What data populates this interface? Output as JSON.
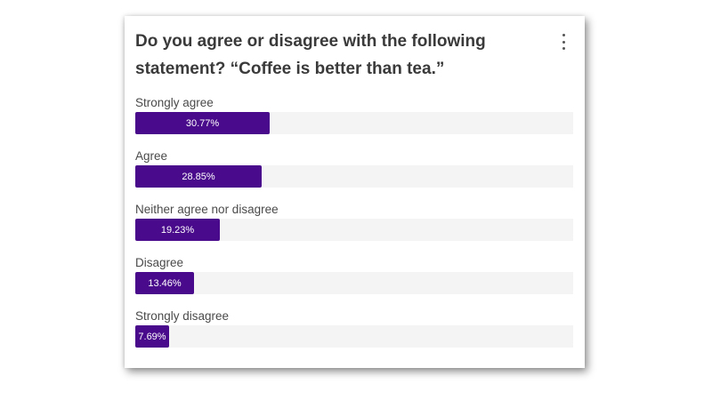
{
  "card": {
    "question": "Do you agree or disagree with the following statement? “Coffee is better than tea.”"
  },
  "chart_data": {
    "type": "bar",
    "orientation": "horizontal",
    "title": "Do you agree or disagree with the following statement? “Coffee is better than tea.”",
    "xlim": [
      0,
      100
    ],
    "bar_color": "#4a0a8c",
    "track_color": "#f4f4f4",
    "categories": [
      "Strongly agree",
      "Agree",
      "Neither agree nor disagree",
      "Disagree",
      "Strongly disagree"
    ],
    "values": [
      30.77,
      28.85,
      19.23,
      13.46,
      7.69
    ],
    "value_labels": [
      "30.77%",
      "28.85%",
      "19.23%",
      "13.46%",
      "7.69%"
    ]
  }
}
